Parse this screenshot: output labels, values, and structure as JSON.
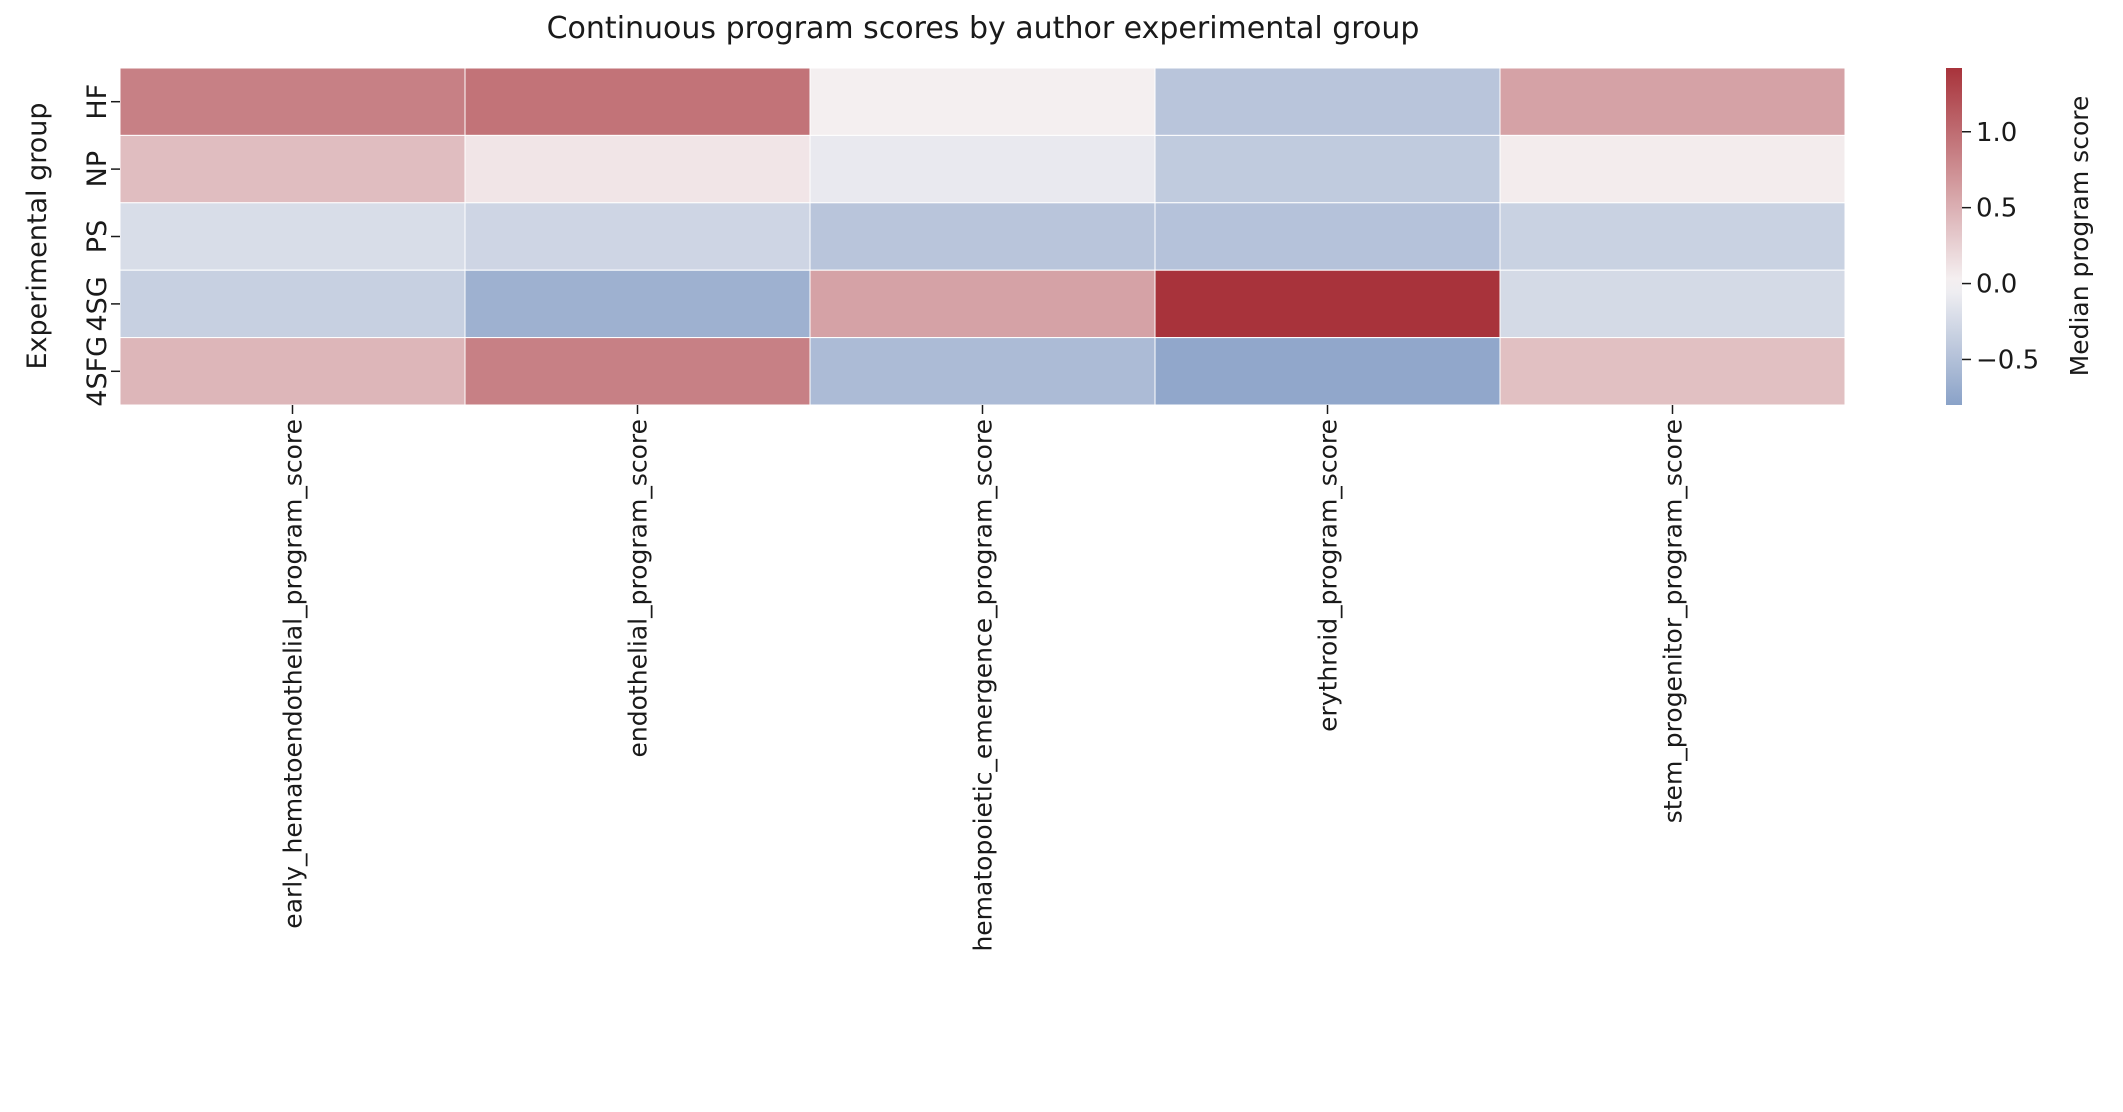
{
  "chart_data": {
    "type": "heatmap",
    "title": "Continuous program scores by author experimental group",
    "xlabel": "",
    "ylabel": "Experimental group",
    "rows": [
      "HF",
      "NP",
      "PS",
      "4SG",
      "4SFG"
    ],
    "columns": [
      "early_hematoendothelial_program_score",
      "endothelial_program_score",
      "hematopoietic_emergence_program_score",
      "erythroid_program_score",
      "stem_progenitor_program_score"
    ],
    "values": [
      [
        0.85,
        0.95,
        0.03,
        -0.45,
        0.6
      ],
      [
        0.4,
        0.1,
        -0.1,
        -0.4,
        0.05
      ],
      [
        -0.22,
        -0.3,
        -0.45,
        -0.48,
        -0.33
      ],
      [
        -0.35,
        -0.65,
        0.6,
        1.42,
        -0.25
      ],
      [
        0.45,
        0.85,
        -0.55,
        -0.75,
        0.38
      ]
    ],
    "colorbar": {
      "label": "Median program score",
      "range": [
        -0.8,
        1.42
      ],
      "ticks": [
        -0.5,
        0.0,
        0.5,
        1.0
      ],
      "tick_labels": [
        "−0.5",
        "0.0",
        "0.5",
        "1.0"
      ],
      "colormap": "vlag",
      "center": 0,
      "colors": {
        "low": "#8aa2c8",
        "mid": "#f6f3f4",
        "high": "#a8333b"
      }
    },
    "grid": true,
    "legend": "right"
  }
}
